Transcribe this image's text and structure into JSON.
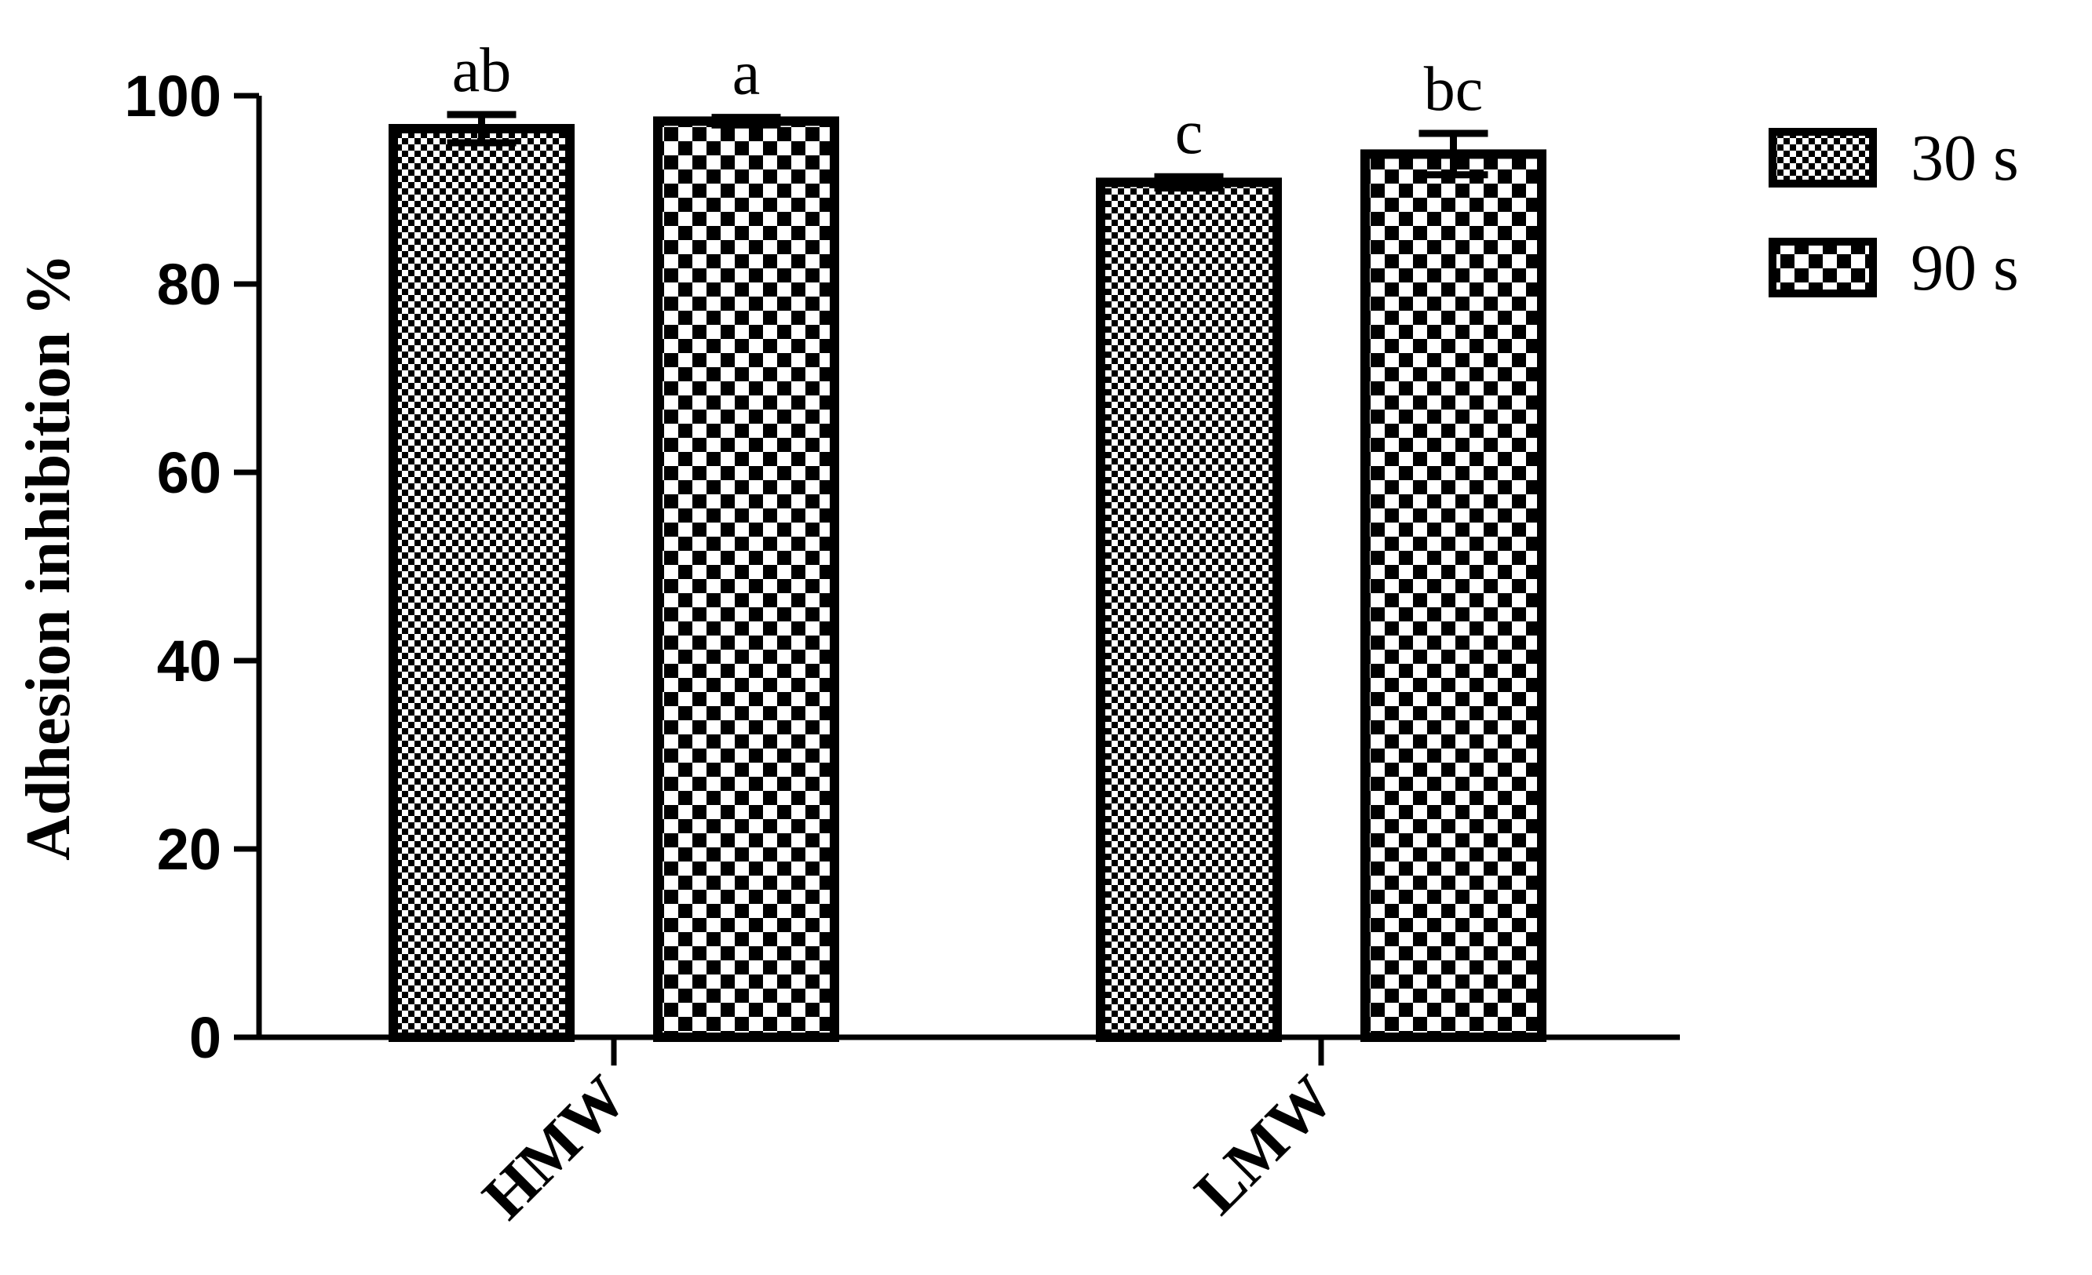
{
  "chart_data": {
    "type": "bar",
    "title": "",
    "xlabel": "",
    "ylabel": "Adhesion inhibition %",
    "ylim": [
      0,
      100
    ],
    "yticks": [
      0,
      20,
      40,
      60,
      80,
      100
    ],
    "categories": [
      "HMW",
      "LMW"
    ],
    "series": [
      {
        "name": "30 s",
        "pattern": "fine-checker",
        "values": [
          96.5,
          90.8
        ],
        "errors": [
          1.5,
          0.6
        ],
        "labels": [
          "ab",
          "c"
        ]
      },
      {
        "name": "90 s",
        "pattern": "coarse-checker",
        "values": [
          97.3,
          93.8
        ],
        "errors": [
          0.4,
          2.2
        ],
        "labels": [
          "a",
          "bc"
        ]
      }
    ],
    "legend_position": "top-right",
    "grid": false,
    "colors": {
      "bar_stroke": "#000000",
      "pattern_dark": "#000000",
      "pattern_light": "#ffffff"
    }
  }
}
